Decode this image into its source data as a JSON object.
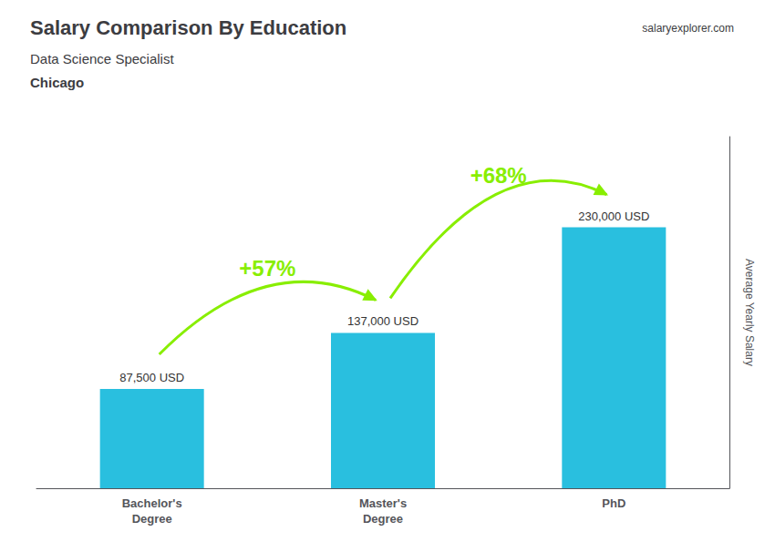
{
  "chart_data": {
    "type": "bar",
    "title": "Salary Comparison By Education",
    "subtitle": "Data Science Specialist",
    "city": "Chicago",
    "source": "salaryexplorer.com",
    "ylabel": "Average Yearly Salary",
    "categories": [
      "Bachelor's\nDegree",
      "Master's\nDegree",
      "PhD"
    ],
    "values": [
      87500,
      137000,
      230000
    ],
    "value_labels": [
      "87,500 USD",
      "137,000 USD",
      "230,000 USD"
    ],
    "data_labels": true,
    "color": "#29bfdf",
    "ylim": [
      0,
      310000
    ],
    "tick_labels": "x",
    "grid": false,
    "annotations": [
      {
        "text": "+57%",
        "color": "#88ee00"
      },
      {
        "text": "+68%",
        "color": "#88ee00"
      }
    ]
  }
}
